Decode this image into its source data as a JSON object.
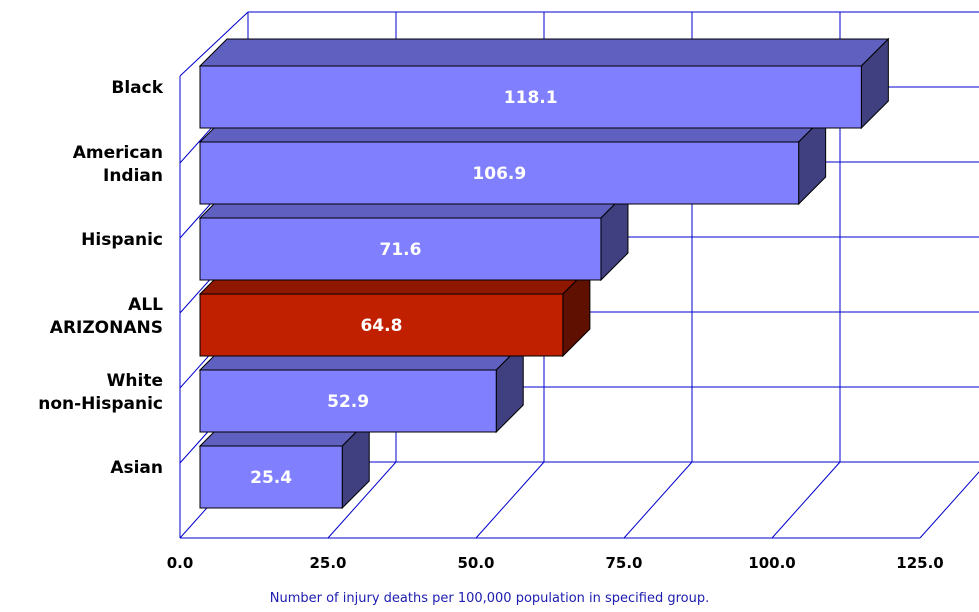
{
  "chart_data": {
    "type": "bar",
    "orientation": "horizontal",
    "three_d": true,
    "categories": [
      [
        "Black"
      ],
      [
        "American",
        "Indian"
      ],
      [
        "Hispanic"
      ],
      [
        "ALL",
        "ARIZONANS"
      ],
      [
        "White",
        "non-Hispanic"
      ],
      [
        "Asian"
      ]
    ],
    "values": [
      118.1,
      106.9,
      71.6,
      64.8,
      52.9,
      25.4
    ],
    "data_labels": [
      "118.1",
      "106.9",
      "71.6",
      "64.8",
      "52.9",
      "25.4"
    ],
    "highlight_index": 3,
    "xlim": [
      0,
      125
    ],
    "x_ticks": [
      0,
      25,
      50,
      75,
      100,
      125
    ],
    "x_tick_labels": [
      "0.0",
      "25.0",
      "50.0",
      "75.0",
      "100.0",
      "125.0"
    ],
    "xlabel": "Number of injury deaths per 100,000 population in specified group.",
    "grid": true,
    "legend": "none",
    "colors": {
      "bar_front": "#8080ff",
      "bar_top": "#6060c0",
      "bar_side": "#404080",
      "highlight_front": "#c02000",
      "highlight_top": "#901800",
      "highlight_side": "#601000",
      "grid": "#0000cc",
      "xlabel_text": "#1c1cb0"
    }
  }
}
